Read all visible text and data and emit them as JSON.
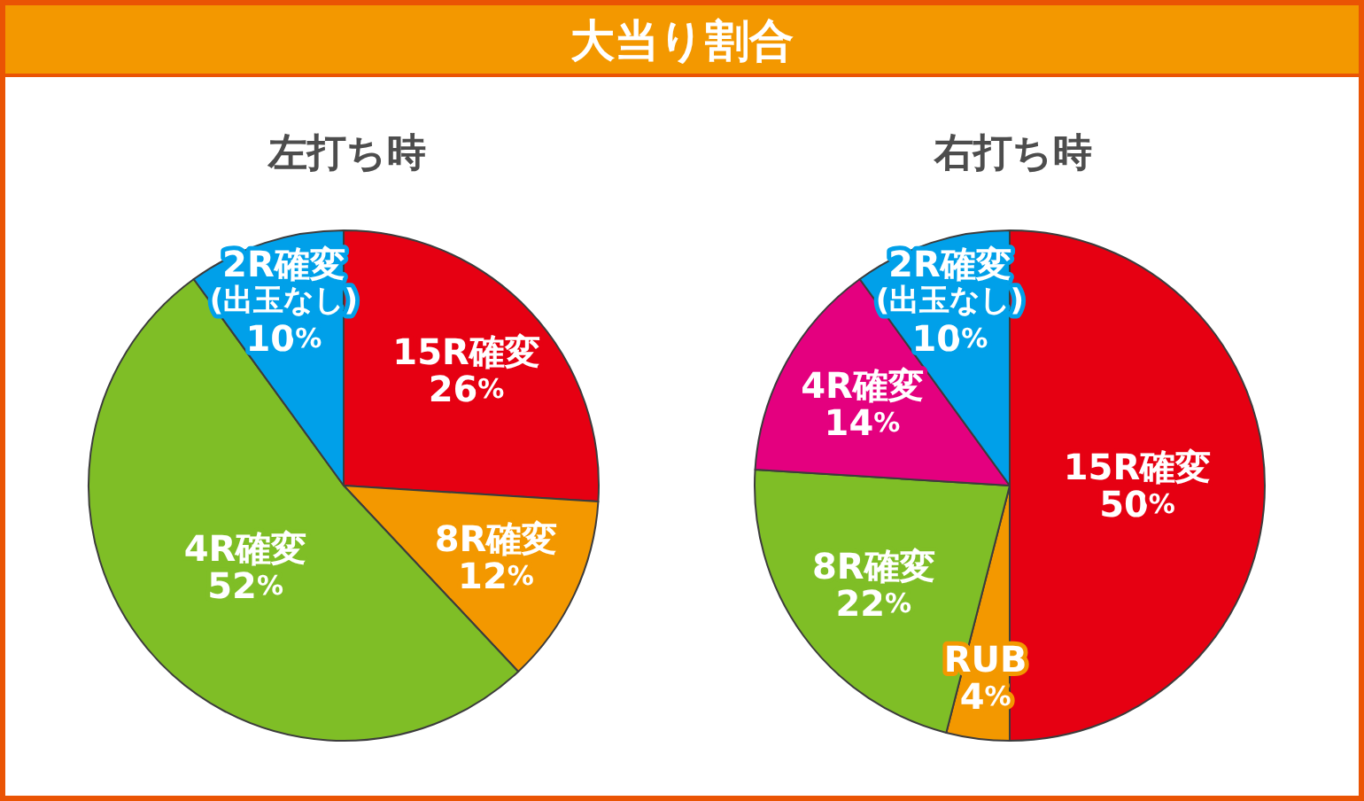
{
  "chart_data": [
    {
      "type": "pie",
      "title": "大当り割合",
      "subtitle": "左打ち時",
      "categories": [
        "15R確変",
        "8R確変",
        "4R確変",
        "2R確変(出玉なし)"
      ],
      "values": [
        26,
        12,
        52,
        10
      ],
      "colors": [
        "#e60012",
        "#f39800",
        "#7fbe26",
        "#00a0e9"
      ],
      "value_labels": [
        "26%",
        "12%",
        "52%",
        "10%"
      ]
    },
    {
      "type": "pie",
      "subtitle": "右打ち時",
      "categories": [
        "15R確変",
        "RUB",
        "8R確変",
        "4R確変",
        "2R確変(出玉なし)"
      ],
      "values": [
        50,
        4,
        22,
        14,
        10
      ],
      "colors": [
        "#e60012",
        "#f39800",
        "#7fbe26",
        "#e4007f",
        "#00a0e9"
      ],
      "value_labels": [
        "50%",
        "4%",
        "22%",
        "14%",
        "10%"
      ]
    }
  ]
}
